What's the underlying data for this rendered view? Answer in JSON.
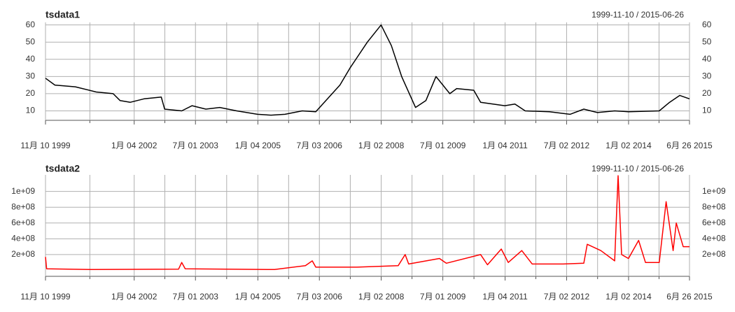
{
  "chart_data": [
    {
      "type": "line",
      "title": "tsdata1",
      "range": "1999-11-10 / 2015-06-26",
      "x": [
        "1999-11-10",
        "2000-02",
        "2000-08",
        "2001-02",
        "2001-07",
        "2001-09",
        "2001-12",
        "2002-04",
        "2002-09",
        "2002-10",
        "2003-03",
        "2003-06",
        "2003-10",
        "2004-02",
        "2004-07",
        "2005-01",
        "2005-05",
        "2005-09",
        "2006-02",
        "2006-06",
        "2007-01",
        "2007-04",
        "2007-09",
        "2008-01",
        "2008-04",
        "2008-07",
        "2008-11",
        "2009-02",
        "2009-05",
        "2009-09",
        "2009-11",
        "2010-04",
        "2010-06",
        "2011-01",
        "2011-04",
        "2011-07",
        "2012-02",
        "2012-08",
        "2012-12",
        "2013-04",
        "2013-09",
        "2014-01",
        "2014-10",
        "2015-01",
        "2015-04",
        "2015-06-26"
      ],
      "series": [
        {
          "name": "tsdata1",
          "color": "#000000",
          "values": [
            29,
            25,
            24,
            21,
            20,
            16,
            15,
            17,
            18,
            11,
            10,
            13,
            11,
            12,
            10,
            8,
            7.5,
            8,
            10,
            9.5,
            25,
            35,
            50,
            60,
            48,
            30,
            12,
            16,
            30,
            20,
            23,
            22,
            15,
            13,
            14,
            10,
            9.5,
            8,
            11,
            9,
            10,
            9.5,
            10,
            15,
            19,
            17
          ]
        }
      ],
      "xlim": [
        "1999-11-10",
        "2015-06-26"
      ],
      "xticks": [
        {
          "value": "1999-11-10",
          "label": "11月 10 1999"
        },
        {
          "value": "2002-01-04",
          "label": "1月 04 2002"
        },
        {
          "value": "2003-07-01",
          "label": "7月 01 2003"
        },
        {
          "value": "2005-01-04",
          "label": "1月 04 2005"
        },
        {
          "value": "2006-07-03",
          "label": "7月 03 2006"
        },
        {
          "value": "2008-01-02",
          "label": "1月 02 2008"
        },
        {
          "value": "2009-07-01",
          "label": "7月 01 2009"
        },
        {
          "value": "2011-01-04",
          "label": "1月 04 2011"
        },
        {
          "value": "2012-07-02",
          "label": "7月 02 2012"
        },
        {
          "value": "2014-01-02",
          "label": "1月 02 2014"
        },
        {
          "value": "2015-06-26",
          "label": "6月 26 2015"
        }
      ],
      "ylim": [
        4.5,
        61.5
      ],
      "yticks": [
        10,
        20,
        30,
        40,
        50,
        60
      ],
      "grid": true
    },
    {
      "type": "line",
      "title": "tsdata2",
      "range": "1999-11-10 / 2015-06-26",
      "x": [
        "1999-11-10",
        "1999-11-20",
        "2001-01",
        "2003-02",
        "2003-03",
        "2003-04",
        "2005-06",
        "2006-03",
        "2006-05",
        "2006-06",
        "2007-06",
        "2008-06",
        "2008-08",
        "2008-09",
        "2009-06",
        "2009-08",
        "2010-06",
        "2010-08",
        "2010-12",
        "2011-02",
        "2011-06",
        "2011-09",
        "2012-06",
        "2012-12",
        "2013-01",
        "2013-05",
        "2013-09",
        "2013-10",
        "2013-11",
        "2014-01",
        "2014-04",
        "2014-06",
        "2014-10",
        "2014-12",
        "2015-02",
        "2015-03",
        "2015-05",
        "2015-06-26"
      ],
      "series": [
        {
          "name": "tsdata2",
          "color": "#ff0000",
          "values": [
            170000000,
            20000000,
            10000000,
            15000000,
            100000000,
            20000000,
            10000000,
            60000000,
            120000000,
            40000000,
            40000000,
            60000000,
            200000000,
            80000000,
            150000000,
            90000000,
            200000000,
            70000000,
            270000000,
            100000000,
            250000000,
            80000000,
            80000000,
            90000000,
            330000000,
            250000000,
            120000000,
            1200000000,
            200000000,
            150000000,
            380000000,
            100000000,
            100000000,
            870000000,
            250000000,
            600000000,
            300000000,
            300000000
          ]
        }
      ],
      "xlim": [
        "1999-11-10",
        "2015-06-26"
      ],
      "xticks": [
        {
          "value": "1999-11-10",
          "label": "11月 10 1999"
        },
        {
          "value": "2002-01-04",
          "label": "1月 04 2002"
        },
        {
          "value": "2003-07-01",
          "label": "7月 01 2003"
        },
        {
          "value": "2005-01-04",
          "label": "1月 04 2005"
        },
        {
          "value": "2006-07-03",
          "label": "7月 03 2006"
        },
        {
          "value": "2008-01-02",
          "label": "1月 02 2008"
        },
        {
          "value": "2009-07-01",
          "label": "7月 01 2009"
        },
        {
          "value": "2011-01-04",
          "label": "1月 04 2011"
        },
        {
          "value": "2012-07-02",
          "label": "7月 02 2012"
        },
        {
          "value": "2014-01-02",
          "label": "1月 02 2014"
        },
        {
          "value": "2015-06-26",
          "label": "6月 26 2015"
        }
      ],
      "ylim": [
        -76000000,
        1210000000
      ],
      "yticks": [
        {
          "value": 200000000,
          "label": "2e+08"
        },
        {
          "value": 400000000,
          "label": "4e+08"
        },
        {
          "value": 600000000,
          "label": "6e+08"
        },
        {
          "value": 800000000,
          "label": "8e+08"
        },
        {
          "value": 1000000000,
          "label": "1e+09"
        }
      ],
      "grid": true
    }
  ]
}
